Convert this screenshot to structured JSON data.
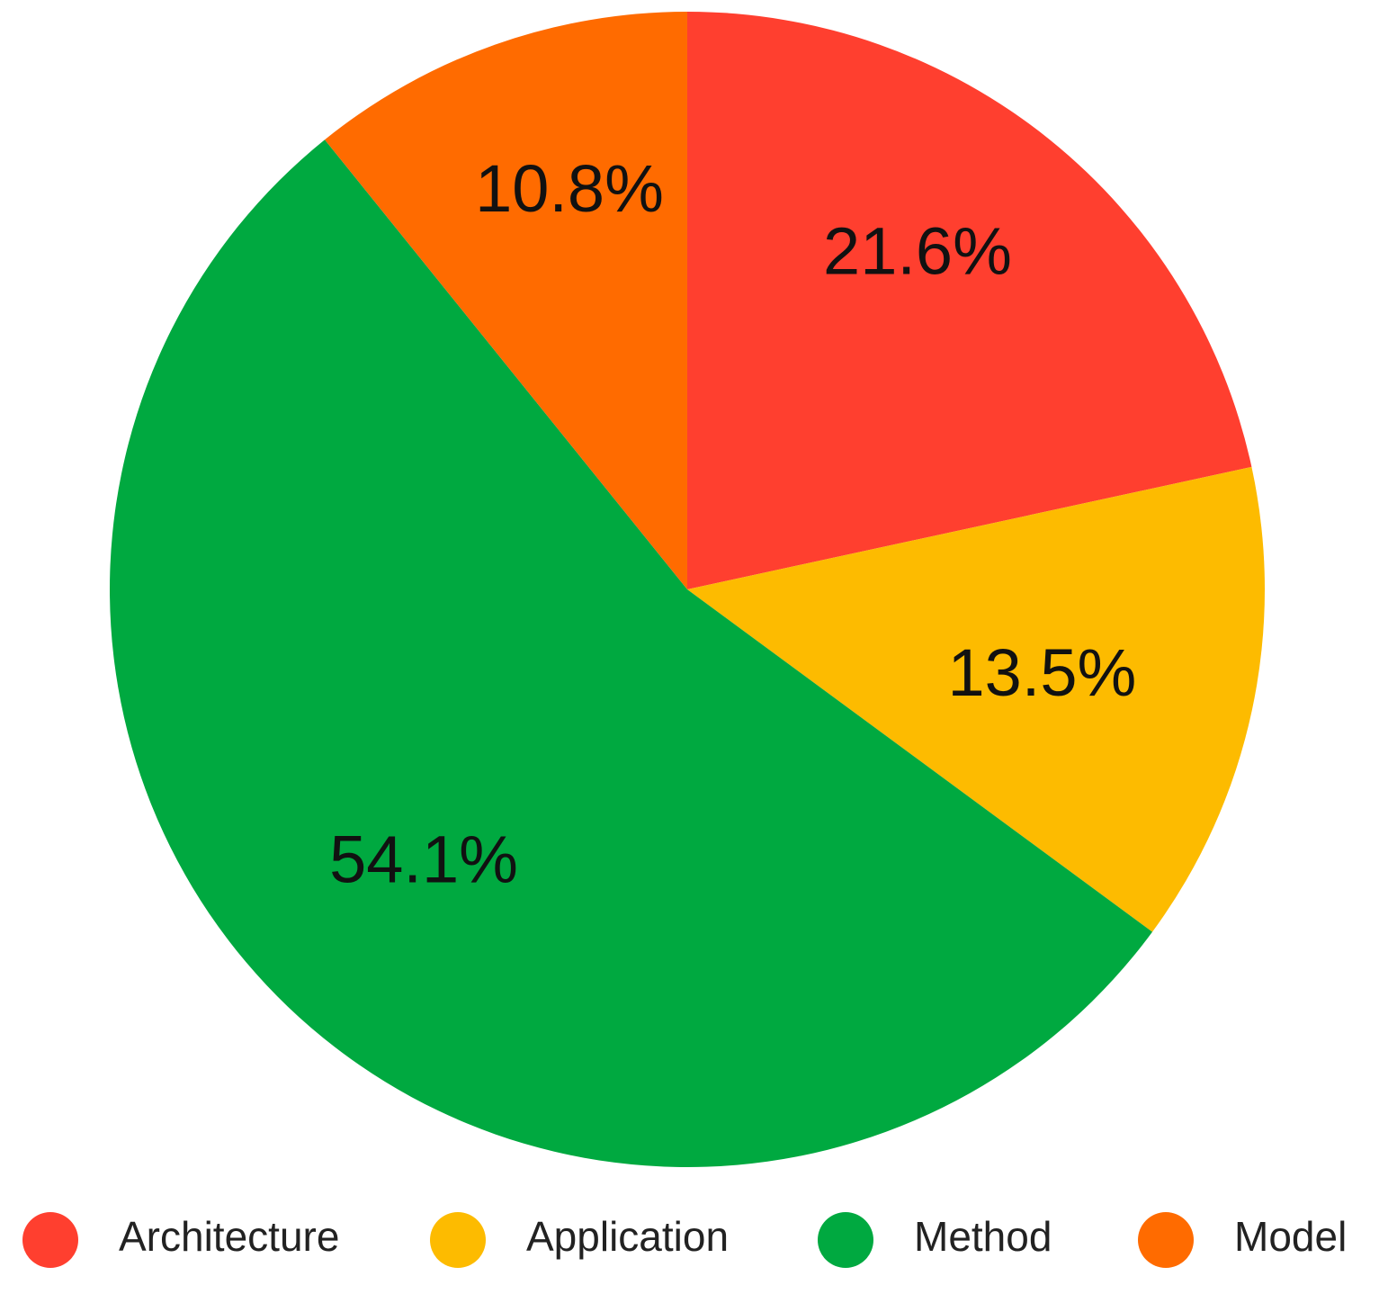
{
  "chart_data": {
    "type": "pie",
    "start": "12 o'clock, clockwise",
    "legend_position": "bottom",
    "slices": [
      {
        "name": "Architecture",
        "value": 21.6,
        "label": "21.6%",
        "color": "#FF3F2F"
      },
      {
        "name": "Application",
        "value": 13.5,
        "label": "13.5%",
        "color": "#FDBB00"
      },
      {
        "name": "Method",
        "value": 54.1,
        "label": "54.1%",
        "color": "#00A940"
      },
      {
        "name": "Model",
        "value": 10.8,
        "label": "10.8%",
        "color": "#FF6B00"
      }
    ]
  }
}
